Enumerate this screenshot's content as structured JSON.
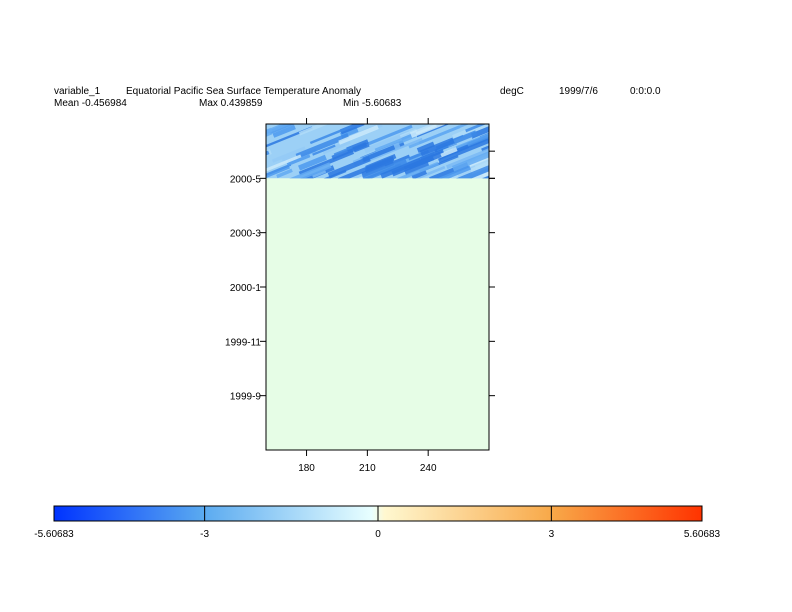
{
  "header": {
    "variable": "variable_1",
    "title": "Equatorial Pacific Sea Surface Temperature Anomaly",
    "units": "degC",
    "date": "1999/7/6",
    "time": "0:0:0.0",
    "mean": "Mean -0.456984",
    "max": "Max 0.439859",
    "min": "Min -5.60683"
  },
  "chart_data": {
    "type": "heatmap",
    "title": "Equatorial Pacific Sea Surface Temperature Anomaly",
    "units": "degC",
    "x": {
      "label": "",
      "range": [
        160,
        270
      ],
      "ticks": [
        180,
        210,
        240
      ],
      "tick_labels": [
        "180",
        "210",
        "240"
      ]
    },
    "y": {
      "label": "",
      "type": "time",
      "range": [
        "1999-07",
        "2000-07"
      ],
      "ticks": [
        "1999-09",
        "1999-11",
        "2000-01",
        "2000-03",
        "2000-05"
      ],
      "tick_labels": [
        "1999-9",
        "1999-11",
        "2000-1",
        "2000-3",
        "2000-5"
      ]
    },
    "data_extent_y": [
      "2000-05",
      "2000-07"
    ],
    "no_data_fill": "#e6fde6",
    "stats": {
      "mean": -0.456984,
      "max": 0.439859,
      "min": -5.60683
    },
    "colorbar": {
      "min": -5.60683,
      "max": 5.60683,
      "ticks": [
        -5.60683,
        -3,
        0,
        3,
        5.60683
      ],
      "tick_labels": [
        "-5.60683",
        "-3",
        "0",
        "3",
        "5.60683"
      ],
      "colors": [
        "#0033ff",
        "#5aaaf0",
        "#e8ffff",
        "#fff8d0",
        "#f8a848",
        "#ff3300"
      ]
    }
  }
}
